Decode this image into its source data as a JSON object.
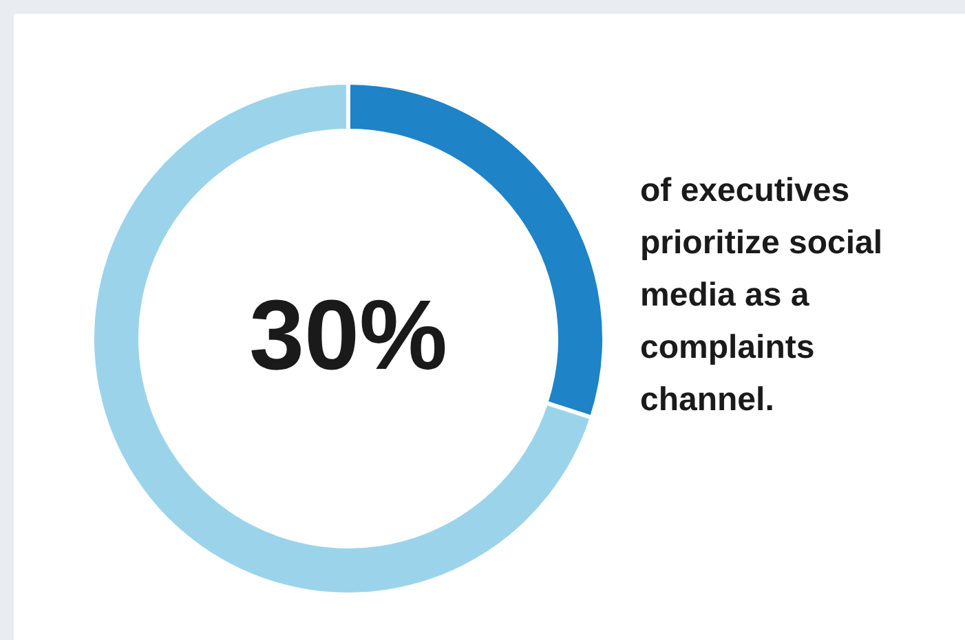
{
  "chart_data": {
    "type": "donut",
    "categories": [
      null,
      null
    ],
    "values": [
      30,
      70
    ],
    "colors": [
      "#1e83c7",
      "#9bd4ea"
    ],
    "annotations": [
      "30%",
      "of executives prioritize social media as a complaints channel."
    ]
  }
}
